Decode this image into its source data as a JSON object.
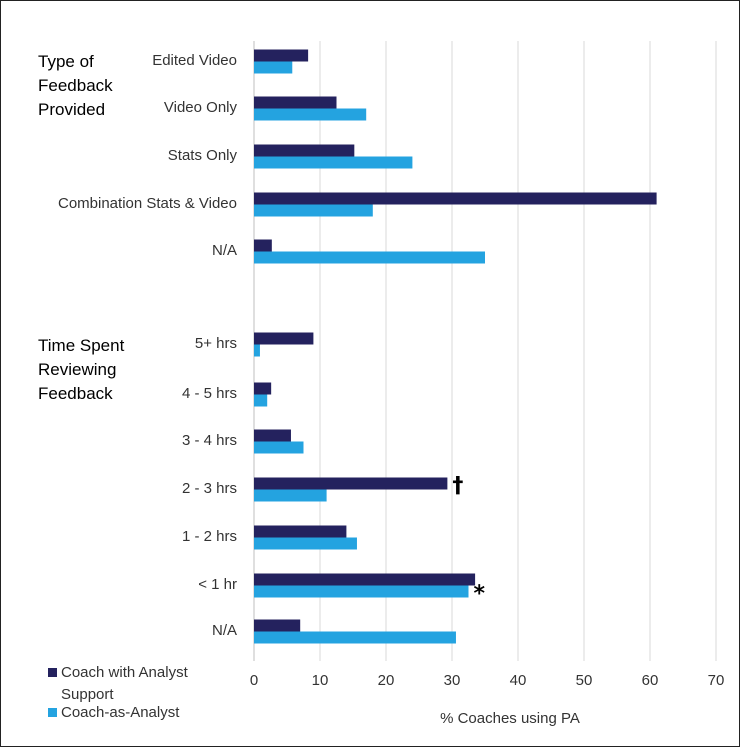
{
  "chart_data": {
    "type": "bar",
    "orientation": "horizontal",
    "xlabel": "% Coaches using PA",
    "xlim": [
      0,
      70
    ],
    "xticks": [
      0,
      10,
      20,
      30,
      40,
      50,
      60,
      70
    ],
    "grid": true,
    "legend_position": "bottom-left",
    "series": [
      {
        "name": "Coach with Analyst Support",
        "color": "#24225e"
      },
      {
        "name": "Coach-as-Analyst",
        "color": "#24a3e0"
      }
    ],
    "groups": [
      {
        "title": [
          "Type of",
          "Feedback",
          "Provided"
        ],
        "rows": [
          {
            "label": "Edited Video",
            "values": [
              8.2,
              5.8
            ],
            "marks": [
              "",
              ""
            ]
          },
          {
            "label": "Video Only",
            "values": [
              12.5,
              17
            ],
            "marks": [
              "",
              ""
            ]
          },
          {
            "label": "Stats Only",
            "values": [
              15.2,
              24
            ],
            "marks": [
              "",
              ""
            ]
          },
          {
            "label": "Combination Stats & Video",
            "values": [
              61,
              18
            ],
            "marks": [
              "",
              ""
            ]
          },
          {
            "label": "N/A",
            "values": [
              2.7,
              35
            ],
            "marks": [
              "",
              ""
            ]
          }
        ]
      },
      {
        "title": [
          "Time Spent",
          "Reviewing",
          "Feedback"
        ],
        "rows": [
          {
            "label": "5+ hrs",
            "values": [
              9,
              0.9
            ],
            "marks": [
              "",
              ""
            ]
          },
          {
            "label": "4 - 5 hrs",
            "values": [
              2.6,
              2
            ],
            "marks": [
              "",
              ""
            ]
          },
          {
            "label": "3 - 4 hrs",
            "values": [
              5.6,
              7.5
            ],
            "marks": [
              "",
              ""
            ]
          },
          {
            "label": "2 - 3 hrs",
            "values": [
              29.3,
              11
            ],
            "marks": [
              "†",
              ""
            ]
          },
          {
            "label": "1 - 2 hrs",
            "values": [
              14,
              15.6
            ],
            "marks": [
              "",
              ""
            ]
          },
          {
            "label": "< 1 hr",
            "values": [
              33.5,
              32.5
            ],
            "marks": [
              "",
              "*"
            ]
          },
          {
            "label": "N/A",
            "values": [
              7,
              30.6
            ],
            "marks": [
              "",
              ""
            ]
          }
        ]
      }
    ]
  }
}
